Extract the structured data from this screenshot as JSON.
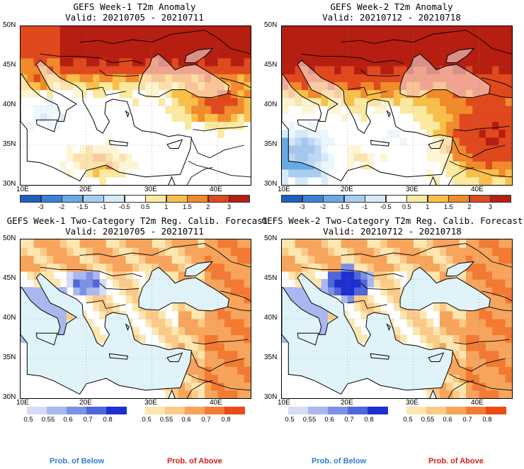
{
  "panels": [
    {
      "title": "GEFS Week-1 T2m Anomaly",
      "valid": "Valid: 20210705 - 20210711",
      "kind": "anomaly",
      "variant": 1
    },
    {
      "title": "GEFS Week-2 T2m Anomaly",
      "valid": "Valid: 20210712 - 20210718",
      "kind": "anomaly",
      "variant": 2
    },
    {
      "title": "GEFS Week-1 Two-Category T2m Reg. Calib. Forecast",
      "valid": "Valid: 20210705 - 20210711",
      "kind": "prob",
      "variant": 1
    },
    {
      "title": "GEFS Week-2 Two-Category T2m Reg. Calib. Forecast",
      "valid": "Valid: 20210712 - 20210718",
      "kind": "prob",
      "variant": 2
    }
  ],
  "lat_labels": [
    "50N",
    "45N",
    "40N",
    "35N",
    "30N"
  ],
  "lon_labels": [
    "10E",
    "20E",
    "30E",
    "40E"
  ],
  "anomaly_colorbar": {
    "labels": [
      "-3",
      "-2",
      "-1.5",
      "-1",
      "-0.5",
      "0.5",
      "1",
      "1.5",
      "2",
      "3"
    ],
    "colors": [
      "#1f5fbf",
      "#3a82d8",
      "#6aa8e6",
      "#a7cdef",
      "#d6ebfa",
      "#ffffff",
      "#fbe9a0",
      "#f8bf4a",
      "#f08a2c",
      "#e0481e",
      "#b51e10"
    ]
  },
  "prob_below_colorbar": {
    "labels": [
      "0.5",
      "0.55",
      "0.6",
      "0.7",
      "0.8"
    ],
    "colors": [
      "#d4dcf6",
      "#a9b8ee",
      "#7e91e4",
      "#4f66da",
      "#1f2fd0"
    ]
  },
  "prob_above_colorbar": {
    "labels": [
      "0.5",
      "0.55",
      "0.6",
      "0.7",
      "0.8"
    ],
    "colors": [
      "#fde6b0",
      "#fbc988",
      "#f7a45c",
      "#f27a32",
      "#ea4b17"
    ]
  },
  "legend": {
    "below_text": "Prob. of Below",
    "above_text": "Prob. of Above",
    "below_color": "#2e7bdc",
    "above_color": "#d81e16"
  }
}
